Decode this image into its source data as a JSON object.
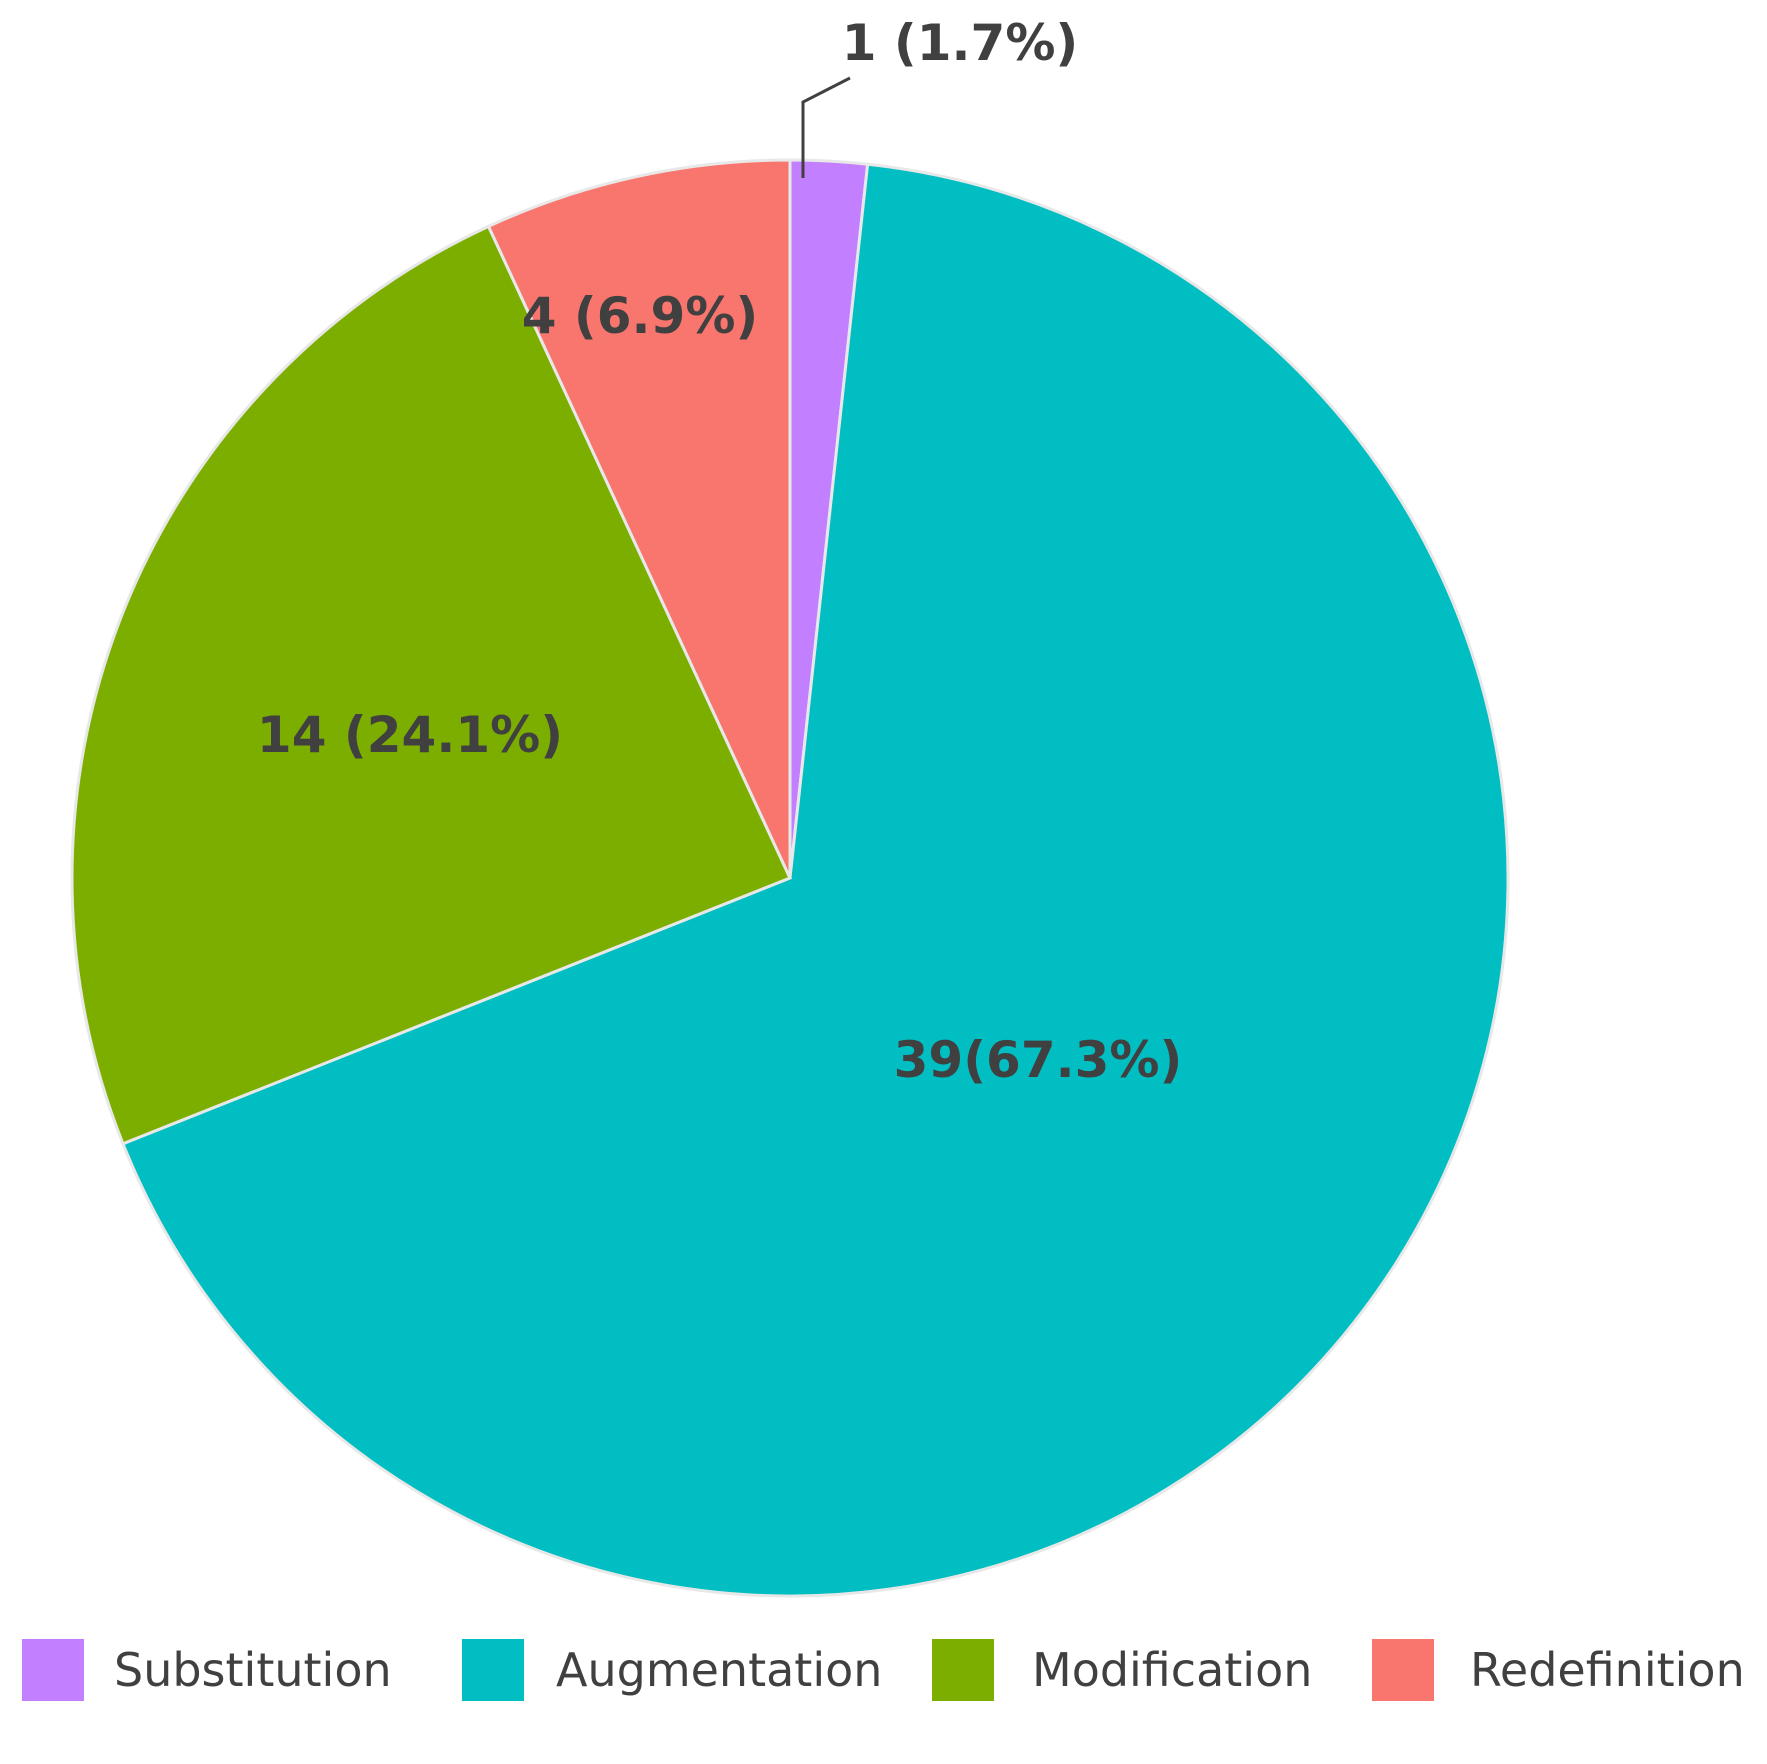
{
  "chart_data": {
    "type": "pie",
    "title": "",
    "start": "top",
    "direction": "clockwise",
    "legend_position": "bottom",
    "slices": [
      {
        "name": "Substitution",
        "value": 1,
        "percent": 1.7,
        "label": "1 (1.7%)",
        "color": "#C27FFF"
      },
      {
        "name": "Augmentation",
        "value": 39,
        "percent": 67.3,
        "label": "39(67.3%)",
        "color": "#00BEC2"
      },
      {
        "name": "Modification",
        "value": 14,
        "percent": 24.1,
        "label": "14 (24.1%)",
        "color": "#7CAE00"
      },
      {
        "name": "Redefinition",
        "value": 4,
        "percent": 6.9,
        "label": "4 (6.9%)",
        "color": "#F8766D"
      }
    ]
  }
}
